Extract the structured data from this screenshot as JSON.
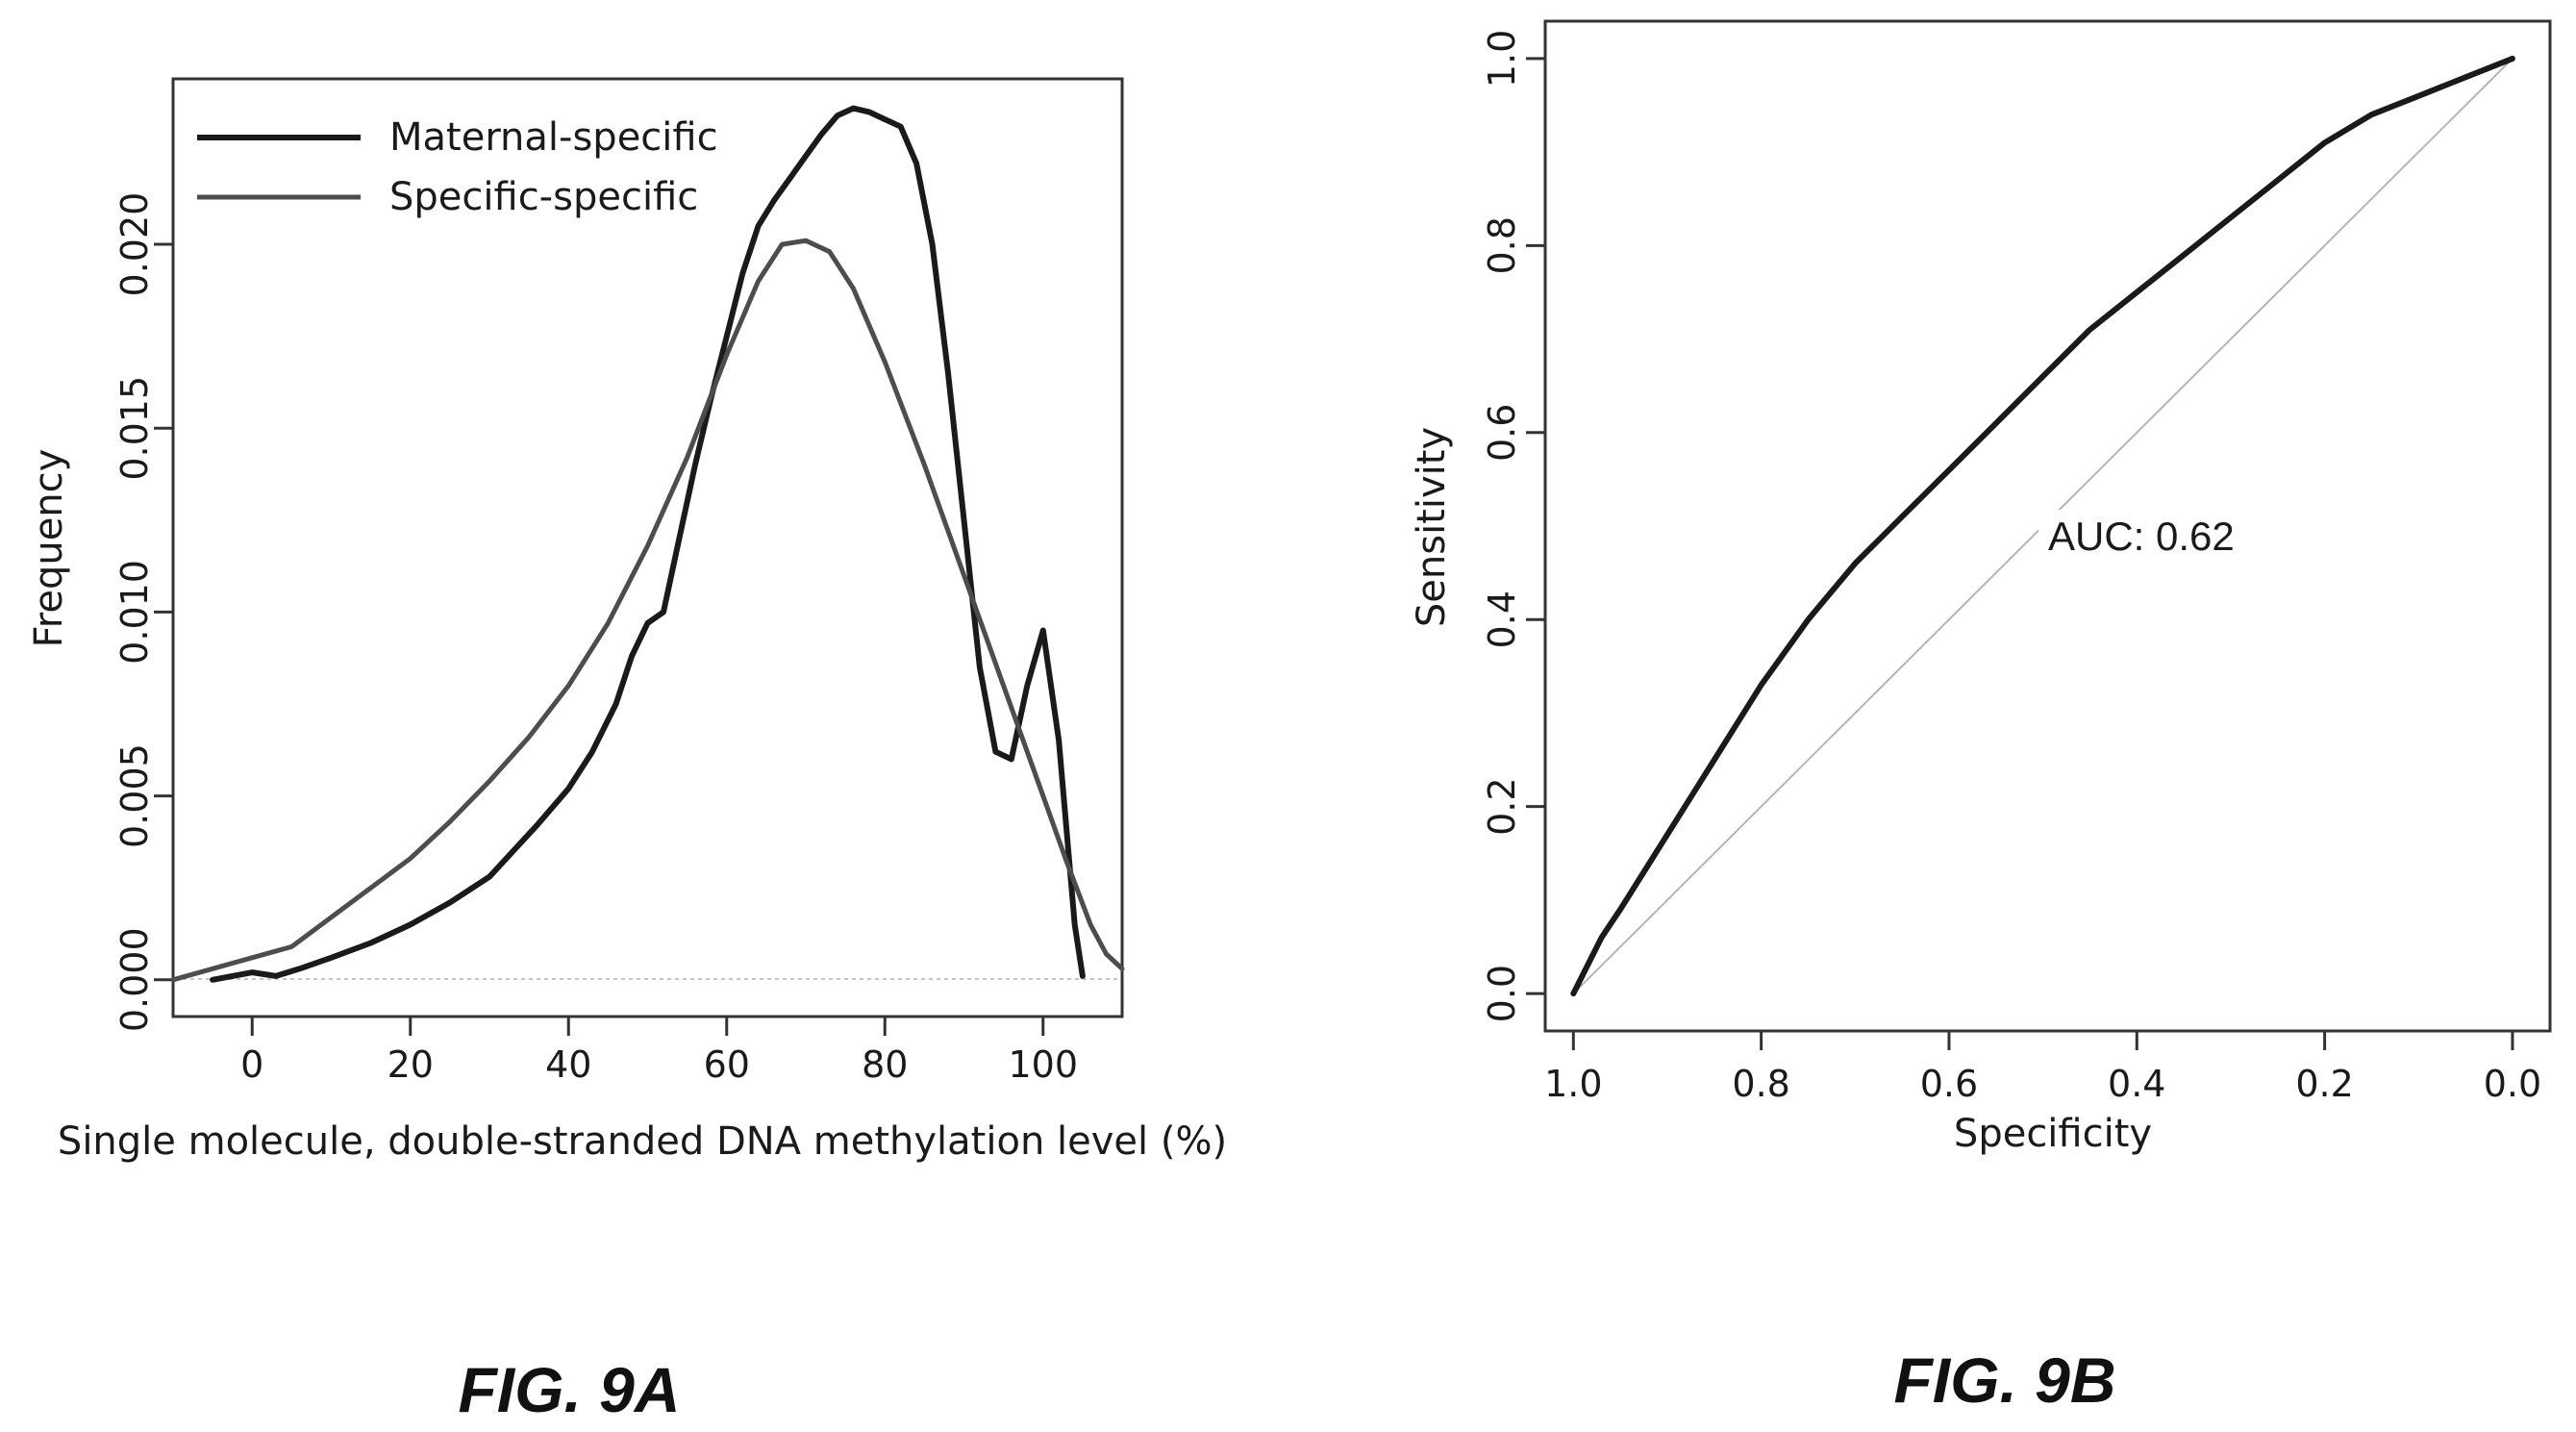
{
  "chart_data": [
    {
      "type": "line",
      "xlabel": "Single molecule, double-stranded DNA methylation level (%)",
      "ylabel": "Frequency",
      "xlim": [
        -10,
        110
      ],
      "ylim": [
        -0.001,
        0.0245
      ],
      "x_ticks": [
        "0",
        "20",
        "40",
        "60",
        "80",
        "100"
      ],
      "y_ticks": [
        "0.000",
        "0.005",
        "0.010",
        "0.015",
        "0.020"
      ],
      "legend_position": "top-left",
      "series": [
        {
          "name": "Maternal-specific",
          "color": "#1a1a1a",
          "x": [
            -5,
            0,
            3,
            6,
            10,
            15,
            20,
            25,
            30,
            33,
            36,
            40,
            43,
            46,
            48,
            50,
            52,
            54,
            56,
            58,
            60,
            62,
            64,
            66,
            68,
            70,
            72,
            74,
            76,
            78,
            80,
            82,
            84,
            86,
            88,
            90,
            92,
            94,
            96,
            98,
            100,
            102,
            104,
            105
          ],
          "y": [
            0.0,
            0.0002,
            0.0001,
            0.0003,
            0.0006,
            0.001,
            0.0015,
            0.0021,
            0.0028,
            0.0035,
            0.0042,
            0.0052,
            0.0062,
            0.0075,
            0.0088,
            0.0097,
            0.01,
            0.012,
            0.014,
            0.0158,
            0.0175,
            0.0192,
            0.0205,
            0.0212,
            0.0218,
            0.0224,
            0.023,
            0.0235,
            0.0237,
            0.0236,
            0.0234,
            0.0232,
            0.0222,
            0.02,
            0.0165,
            0.0125,
            0.0085,
            0.0062,
            0.006,
            0.008,
            0.0095,
            0.0065,
            0.0015,
            0.0001
          ]
        },
        {
          "name": "Specific-specific",
          "color": "#4d4d4d",
          "x": [
            -10,
            -5,
            0,
            5,
            10,
            15,
            20,
            25,
            30,
            35,
            40,
            45,
            50,
            55,
            60,
            64,
            67,
            70,
            73,
            76,
            80,
            85,
            90,
            95,
            100,
            103,
            106,
            108,
            110
          ],
          "y": [
            0.0,
            0.0003,
            0.0006,
            0.0009,
            0.0017,
            0.0025,
            0.0033,
            0.0043,
            0.0054,
            0.0066,
            0.008,
            0.0097,
            0.0118,
            0.0142,
            0.017,
            0.019,
            0.02,
            0.0201,
            0.0198,
            0.0188,
            0.0168,
            0.014,
            0.011,
            0.008,
            0.005,
            0.0032,
            0.0015,
            0.0007,
            0.0003
          ]
        }
      ],
      "caption": "FIG. 9A"
    },
    {
      "type": "line",
      "xlabel": "Specificity",
      "ylabel": "Sensitivity",
      "x_reversed": true,
      "xlim": [
        1.03,
        -0.04
      ],
      "ylim": [
        -0.04,
        1.04
      ],
      "x_ticks": [
        "1.0",
        "0.8",
        "0.6",
        "0.4",
        "0.2",
        "0.0"
      ],
      "y_ticks": [
        "0.0",
        "0.2",
        "0.4",
        "0.6",
        "0.8",
        "1.0"
      ],
      "annotation": "AUC: 0.62",
      "series": [
        {
          "name": "ROC",
          "color": "#1a1a1a",
          "x": [
            1.0,
            0.97,
            0.95,
            0.9,
            0.85,
            0.8,
            0.75,
            0.7,
            0.65,
            0.6,
            0.55,
            0.5,
            0.45,
            0.4,
            0.35,
            0.3,
            0.25,
            0.2,
            0.15,
            0.1,
            0.05,
            0.0
          ],
          "y": [
            0.0,
            0.06,
            0.09,
            0.17,
            0.25,
            0.33,
            0.4,
            0.46,
            0.51,
            0.56,
            0.61,
            0.66,
            0.71,
            0.75,
            0.79,
            0.83,
            0.87,
            0.91,
            0.94,
            0.96,
            0.98,
            1.0
          ]
        },
        {
          "name": "Reference",
          "color": "#b5b5b5",
          "x": [
            1.0,
            0.0
          ],
          "y": [
            0.0,
            1.0
          ]
        }
      ],
      "caption": "FIG. 9B"
    }
  ]
}
